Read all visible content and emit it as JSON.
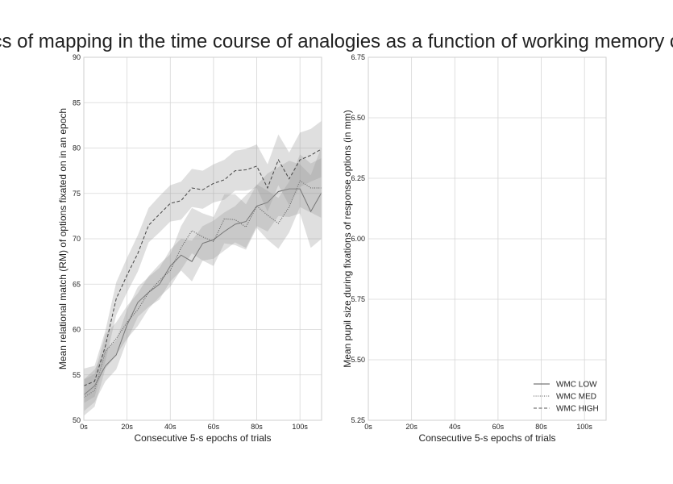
{
  "figure": {
    "title": "Dynamics of mapping in the time course of analogies as a function of working memory capacity"
  },
  "chart_data": [
    {
      "type": "line",
      "xlabel": "Consecutive 5-s epochs of trials",
      "ylabel": "Mean relational match (RM) of options fixated on in an epoch",
      "xlim": [
        0,
        110
      ],
      "ylim": [
        50,
        90
      ],
      "x_ticks": [
        0,
        20,
        40,
        60,
        80,
        100
      ],
      "x_tick_labels": [
        "0s",
        "20s",
        "40s",
        "60s",
        "80s",
        "100s"
      ],
      "y_ticks": [
        50,
        55,
        60,
        65,
        70,
        75,
        80,
        85,
        90
      ],
      "y_tick_labels": [
        "50",
        "55",
        "60",
        "65",
        "70",
        "75",
        "80",
        "85",
        "90"
      ],
      "grid": true,
      "x": [
        0,
        5,
        10,
        15,
        20,
        25,
        30,
        35,
        40,
        45,
        50,
        55,
        60,
        65,
        70,
        75,
        80,
        85,
        90,
        95,
        100,
        105,
        110
      ],
      "series": [
        {
          "name": "WMC LOW",
          "style": "solid",
          "color": "#666666",
          "values": [
            52.8,
            53.8,
            56.0,
            57.2,
            60.5,
            63.0,
            64.1,
            65.0,
            67.0,
            68.2,
            67.5,
            69.5,
            69.9,
            70.8,
            71.6,
            71.9,
            73.6,
            74.0,
            75.2,
            75.5,
            75.5,
            73.0,
            75.1
          ],
          "ci_low": [
            51.0,
            52.0,
            54.3,
            55.6,
            58.8,
            61.4,
            62.5,
            63.3,
            65.3,
            66.5,
            65.3,
            67.6,
            67.8,
            68.7,
            69.6,
            69.0,
            71.4,
            70.8,
            72.5,
            72.4,
            72.8,
            69.0,
            70.0
          ],
          "ci_high": [
            54.5,
            55.6,
            57.8,
            58.8,
            62.2,
            64.7,
            65.8,
            66.8,
            68.8,
            70.0,
            69.8,
            71.4,
            72.0,
            72.9,
            73.6,
            74.8,
            75.9,
            77.2,
            77.9,
            78.6,
            78.2,
            77.0,
            80.2
          ]
        },
        {
          "name": "WMC MED",
          "style": "dotted",
          "color": "#555555",
          "values": [
            52.5,
            53.3,
            57.6,
            59.0,
            60.8,
            62.2,
            64.1,
            65.4,
            66.5,
            69.0,
            70.9,
            70.2,
            69.7,
            72.2,
            72.1,
            71.3,
            73.6,
            72.6,
            71.7,
            73.5,
            76.4,
            75.6,
            75.6
          ],
          "ci_low": [
            50.5,
            51.5,
            55.7,
            57.2,
            59.0,
            60.4,
            62.3,
            63.6,
            64.7,
            66.6,
            68.4,
            67.6,
            67.0,
            69.5,
            69.3,
            68.8,
            71.2,
            69.9,
            68.9,
            70.7,
            73.5,
            72.9,
            72.3
          ],
          "ci_high": [
            54.5,
            55.1,
            59.5,
            60.8,
            62.6,
            64.0,
            65.9,
            67.2,
            68.3,
            71.4,
            73.4,
            72.8,
            72.4,
            74.9,
            74.9,
            73.8,
            76.0,
            75.3,
            74.5,
            76.3,
            79.3,
            78.3,
            78.9
          ]
        },
        {
          "name": "WMC HIGH",
          "style": "dashed",
          "color": "#444444",
          "values": [
            53.8,
            54.3,
            58.2,
            63.4,
            66.0,
            68.4,
            71.5,
            72.7,
            73.9,
            74.2,
            75.6,
            75.4,
            76.1,
            76.5,
            77.5,
            77.6,
            78.0,
            75.6,
            78.7,
            76.6,
            78.7,
            79.2,
            79.9
          ],
          "ci_low": [
            51.9,
            52.6,
            56.5,
            61.6,
            64.1,
            66.4,
            69.6,
            70.7,
            71.9,
            72.1,
            73.5,
            73.3,
            74.0,
            74.3,
            75.3,
            75.3,
            75.6,
            73.0,
            75.9,
            73.7,
            75.7,
            76.3,
            76.8
          ],
          "ci_high": [
            55.7,
            56.0,
            59.9,
            65.2,
            67.9,
            70.4,
            73.4,
            74.7,
            75.9,
            76.3,
            77.7,
            77.5,
            78.2,
            78.7,
            79.7,
            79.9,
            80.4,
            78.2,
            81.5,
            79.5,
            81.7,
            82.1,
            83.0
          ]
        }
      ]
    },
    {
      "type": "line",
      "xlabel": "Consecutive 5-s epochs of trials",
      "ylabel": "Mean pupil size during fixations of response options (in mm)",
      "xlim": [
        0,
        110
      ],
      "ylim": [
        5.25,
        6.75
      ],
      "x_ticks": [
        0,
        20,
        40,
        60,
        80,
        100
      ],
      "x_tick_labels": [
        "0s",
        "20s",
        "40s",
        "60s",
        "80s",
        "100s"
      ],
      "y_ticks": [
        5.25,
        5.5,
        5.75,
        6.0,
        6.25,
        6.5,
        6.75
      ],
      "y_tick_labels": [
        "5.25",
        "5.50",
        "5.75",
        "6.00",
        "6.25",
        "6.50",
        "6.75"
      ],
      "grid": true,
      "legend": {
        "position": "lower-right",
        "entries": [
          {
            "label": "WMC LOW",
            "style": "solid"
          },
          {
            "label": "WMC MED",
            "style": "dotted"
          },
          {
            "label": "WMC HIGH",
            "style": "dashed"
          }
        ]
      },
      "series": []
    }
  ]
}
